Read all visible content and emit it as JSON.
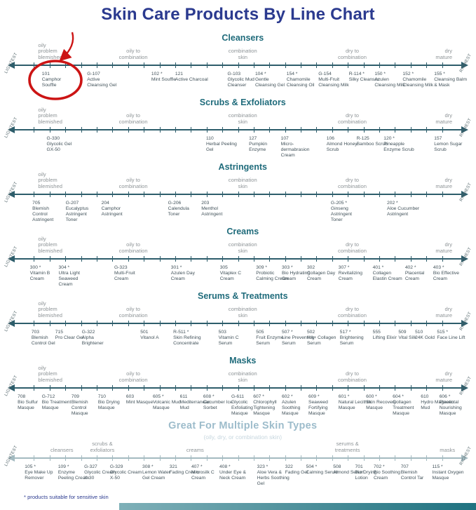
{
  "title": "Skin Care Products By Line Chart",
  "footnote": "* products suitable for sensitive skin",
  "colors": {
    "title": "#2b3a8f",
    "section_header": "#1f6b7b",
    "multi_header": "#9dbccb",
    "multi_subtitle": "#c6d6de",
    "skin_label": "#8f9598",
    "product_text": "#42525a",
    "axis": "#2d5d6b",
    "axis_light": "#a3bac0",
    "axis_end_label": "#54676c",
    "annotation": "#cc1414",
    "bar_gradient_start": "#7fb0b8",
    "bar_gradient_end": "#1f7280"
  },
  "chart_data": {
    "type": "line",
    "subtype": "product-spectrum-number-lines",
    "axis_ends": {
      "left": "LIGHTEST",
      "right": "RICHEST"
    },
    "axis_tick_segments": 28,
    "annotation": {
      "shape": "hand-drawn circle with curved arrow",
      "target_code": "101"
    },
    "standard_skin_labels": [
      {
        "text": "oily\nproblem\nblemished",
        "pos": 8,
        "align": "left"
      },
      {
        "text": "oily to\ncombination",
        "pos": 28,
        "align": "center"
      },
      {
        "text": "combination\nskin",
        "pos": 51,
        "align": "center"
      },
      {
        "text": "dry to\ncombination",
        "pos": 74,
        "align": "center"
      },
      {
        "text": "dry\nmature",
        "pos": 95,
        "align": "right"
      }
    ],
    "sections": [
      {
        "title": "Cleansers",
        "labels": "standard",
        "products": [
          {
            "code": "101",
            "name": "Camphor Souffle",
            "pos": 8.8
          },
          {
            "code": "G-107",
            "name": "Active Cleansing Gel",
            "pos": 18.3
          },
          {
            "code": "102",
            "name": "Mint Souffle",
            "pos": 31.8,
            "sensitive": true
          },
          {
            "code": "121",
            "name": "Active Charcoal",
            "pos": 36.8
          },
          {
            "code": "G-103",
            "name": "Glycolic Mud Cleanser",
            "pos": 47.8
          },
          {
            "code": "104",
            "name": "Gentle Cleansing Gel",
            "pos": 53.6,
            "sensitive": true
          },
          {
            "code": "154",
            "name": "Chamomile Cleansing Oil",
            "pos": 60.2,
            "sensitive": true
          },
          {
            "code": "G-154",
            "name": "Multi-Fruit Cleansing Milk",
            "pos": 66.9
          },
          {
            "code": "R-114",
            "name": "Silky Cleanser",
            "pos": 73.3,
            "sensitive": true
          },
          {
            "code": "150",
            "name": "Azulen Cleansing Milk",
            "pos": 78.7,
            "sensitive": true
          },
          {
            "code": "152",
            "name": "Chamomile Cleansing Milk",
            "pos": 84.6,
            "sensitive": true
          },
          {
            "code": "155",
            "name": "Cleansing Balm & Mask",
            "pos": 91.2,
            "sensitive": true
          }
        ]
      },
      {
        "title": "Scrubs & Exfoliators",
        "labels": "standard",
        "products": [
          {
            "code": "G-330",
            "name": "Glycolic Gel GX-50",
            "pos": 9.8
          },
          {
            "code": "110",
            "name": "Herbal Peeling Gel",
            "pos": 43.3
          },
          {
            "code": "127",
            "name": "Pumpkin Enzyme",
            "pos": 52.3
          },
          {
            "code": "107",
            "name": "Micro-dermabrasion Cream",
            "pos": 59.0
          },
          {
            "code": "106",
            "name": "Almond Honey Scrub",
            "pos": 68.6
          },
          {
            "code": "R-125",
            "name": "Bamboo Scrub",
            "pos": 74.9
          },
          {
            "code": "120",
            "name": "Pineapple Enzyme Scrub",
            "pos": 80.6,
            "sensitive": true
          },
          {
            "code": "157",
            "name": "Lemon Sugar Scrub",
            "pos": 91.2
          }
        ]
      },
      {
        "title": "Astringents",
        "labels": "standard",
        "products": [
          {
            "code": "705",
            "name": "Blemish Control Astringent",
            "pos": 6.8
          },
          {
            "code": "G-207",
            "name": "Eucalyptus Astringent Toner",
            "pos": 13.8
          },
          {
            "code": "204",
            "name": "Camphor Astringent",
            "pos": 21.3
          },
          {
            "code": "G-206",
            "name": "Calendula Toner",
            "pos": 35.3
          },
          {
            "code": "203",
            "name": "Menthol Astringent",
            "pos": 42.3
          },
          {
            "code": "G-205",
            "name": "Ginseng Astringent Toner",
            "pos": 69.5,
            "sensitive": true
          },
          {
            "code": "202",
            "name": "Aloe Cucumber Astringent",
            "pos": 81.3,
            "sensitive": true
          }
        ]
      },
      {
        "title": "Creams",
        "labels": "standard",
        "products": [
          {
            "code": "300",
            "name": "Vitamin B Cream",
            "pos": 6.3,
            "sensitive": true
          },
          {
            "code": "304",
            "name": "Ultra Light Seaweed Cream",
            "pos": 12.3,
            "sensitive": true
          },
          {
            "code": "G-323",
            "name": "Multi-Fruit Cream",
            "pos": 24.0
          },
          {
            "code": "301",
            "name": "Azulen Day Cream",
            "pos": 35.9,
            "sensitive": true
          },
          {
            "code": "305",
            "name": "Vitaplex C Cream",
            "pos": 46.2
          },
          {
            "code": "309",
            "name": "Probiotic Calming Cream",
            "pos": 53.8,
            "sensitive": true
          },
          {
            "code": "303",
            "name": "Bio Hydrating Cream",
            "pos": 59.2,
            "sensitive": true
          },
          {
            "code": "302",
            "name": "Collagen Day Cream",
            "pos": 64.5
          },
          {
            "code": "307",
            "name": "Revitalizing Cream",
            "pos": 71.1,
            "sensitive": true
          },
          {
            "code": "401",
            "name": "Collagen Elastin Cream",
            "pos": 78.3,
            "sensitive": true
          },
          {
            "code": "402",
            "name": "Placental Cream",
            "pos": 85.1,
            "sensitive": true
          },
          {
            "code": "403",
            "name": "Bio Effective Cream",
            "pos": 91.0,
            "sensitive": true
          }
        ]
      },
      {
        "title": "Serums & Treatments",
        "labels": "standard",
        "products": [
          {
            "code": "703",
            "name": "Blemish Control Gel",
            "pos": 6.6
          },
          {
            "code": "715",
            "name": "Pro Clear Gel",
            "pos": 11.6
          },
          {
            "code": "G-322",
            "name": "Alpha Brightener",
            "pos": 17.2
          },
          {
            "code": "501",
            "name": "Vitanol A",
            "pos": 29.5
          },
          {
            "code": "R-511",
            "name": "Skin Refining Concentrate",
            "pos": 36.4,
            "sensitive": true
          },
          {
            "code": "503",
            "name": "Vitamin C Serum",
            "pos": 45.9
          },
          {
            "code": "505",
            "name": "Fruit Enzyme Serum",
            "pos": 53.8
          },
          {
            "code": "507",
            "name": "Line Preventing Serum",
            "pos": 59.2,
            "sensitive": true
          },
          {
            "code": "502",
            "name": "HA+ Collagen Serum",
            "pos": 64.5
          },
          {
            "code": "517",
            "name": "Brightening Serum",
            "pos": 71.4,
            "sensitive": true
          },
          {
            "code": "555",
            "name": "Lifting Elixir",
            "pos": 78.3
          },
          {
            "code": "509",
            "name": "Vital Silk",
            "pos": 83.7
          },
          {
            "code": "510",
            "name": "24K Gold",
            "pos": 87.2
          },
          {
            "code": "515",
            "name": "Face Line Lift",
            "pos": 91.8,
            "sensitive": true
          }
        ]
      },
      {
        "title": "Masks",
        "labels": "standard",
        "products": [
          {
            "code": "708",
            "name": "Bio Sulfur Masque",
            "pos": 3.7
          },
          {
            "code": "G-712",
            "name": "Bio Treatment Masque",
            "pos": 8.8
          },
          {
            "code": "709",
            "name": "Blemish Control Masque",
            "pos": 15.0
          },
          {
            "code": "710",
            "name": "Bio Drying Masque",
            "pos": 20.6
          },
          {
            "code": "603",
            "name": "Mint Masque",
            "pos": 26.5
          },
          {
            "code": "605",
            "name": "Volcanic Mud Masque",
            "pos": 32.1,
            "sensitive": true
          },
          {
            "code": "611",
            "name": "Mediterranean Mud",
            "pos": 37.8
          },
          {
            "code": "608",
            "name": "Cucumber Ice Sorbet",
            "pos": 42.7,
            "sensitive": true
          },
          {
            "code": "G-611",
            "name": "Glycolic Exfoliating Masque",
            "pos": 48.6
          },
          {
            "code": "607",
            "name": "Chlorophyll Tightening Masque",
            "pos": 53.2,
            "sensitive": true
          },
          {
            "code": "602",
            "name": "Azulen Soothing Masque",
            "pos": 59.2,
            "sensitive": true
          },
          {
            "code": "609",
            "name": "Seaweed Fortifying Masque",
            "pos": 64.8,
            "sensitive": true
          },
          {
            "code": "601",
            "name": "Natural Lecithin Masque",
            "pos": 71.1,
            "sensitive": true
          },
          {
            "code": "600",
            "name": "Skin Recovery Masque",
            "pos": 76.9,
            "sensitive": true
          },
          {
            "code": "604",
            "name": "Collagen Treatment Masque",
            "pos": 82.5,
            "sensitive": true
          },
          {
            "code": "610",
            "name": "Hydro Magnetic Mud",
            "pos": 88.4
          },
          {
            "code": "606",
            "name": "Placental Nourishing Masque",
            "pos": 92.3,
            "sensitive": true
          }
        ]
      },
      {
        "title": "Great For Multiple Skin Types",
        "subtitle": "(oily, dry, or combination skin)",
        "labels": [
          {
            "text": "cleansers",
            "pos": 13,
            "align": "center"
          },
          {
            "text": "scrubs &\nexfoliators",
            "pos": 21.5,
            "align": "center"
          },
          {
            "text": "creams",
            "pos": 41,
            "align": "center"
          },
          {
            "text": "serums &\ntreatments",
            "pos": 73,
            "align": "center"
          },
          {
            "text": "masks",
            "pos": 94,
            "align": "center"
          }
        ],
        "products": [
          {
            "code": "105",
            "name": "Eye Make Up Remover",
            "pos": 5.2,
            "sensitive": true
          },
          {
            "code": "109",
            "name": "Enzyme Peeling Cream",
            "pos": 12.2,
            "sensitive": true
          },
          {
            "code": "G-327",
            "name": "Glycolic Cream X-30",
            "pos": 17.7
          },
          {
            "code": "G-329",
            "name": "Glycolic Cream X-50",
            "pos": 23.1
          },
          {
            "code": "308",
            "name": "Lemon Water Gel Cream",
            "pos": 29.9,
            "sensitive": true
          },
          {
            "code": "321",
            "name": "Fading Cream",
            "pos": 35.6
          },
          {
            "code": "407",
            "name": "Microsilk C Cream",
            "pos": 40.2,
            "sensitive": true
          },
          {
            "code": "408",
            "name": "Under Eye & Neck Cream",
            "pos": 46.1,
            "sensitive": true
          },
          {
            "code": "323",
            "name": "Aloe Vera & Herbs Soothing Gel",
            "pos": 54.0,
            "sensitive": true
          },
          {
            "code": "322",
            "name": "Fading Gel",
            "pos": 59.9
          },
          {
            "code": "504",
            "name": "Calming Serum",
            "pos": 64.3,
            "sensitive": true
          },
          {
            "code": "508",
            "name": "Almond Serum",
            "pos": 70.0
          },
          {
            "code": "701",
            "name": "Bio Drying Lotion",
            "pos": 74.6
          },
          {
            "code": "702",
            "name": "Bio Soothing Cream",
            "pos": 78.5,
            "sensitive": true
          },
          {
            "code": "707",
            "name": "Blemish Control Tar",
            "pos": 84.2
          },
          {
            "code": "115",
            "name": "Instant Oxygen Masque",
            "pos": 90.8,
            "sensitive": true
          }
        ]
      }
    ]
  }
}
